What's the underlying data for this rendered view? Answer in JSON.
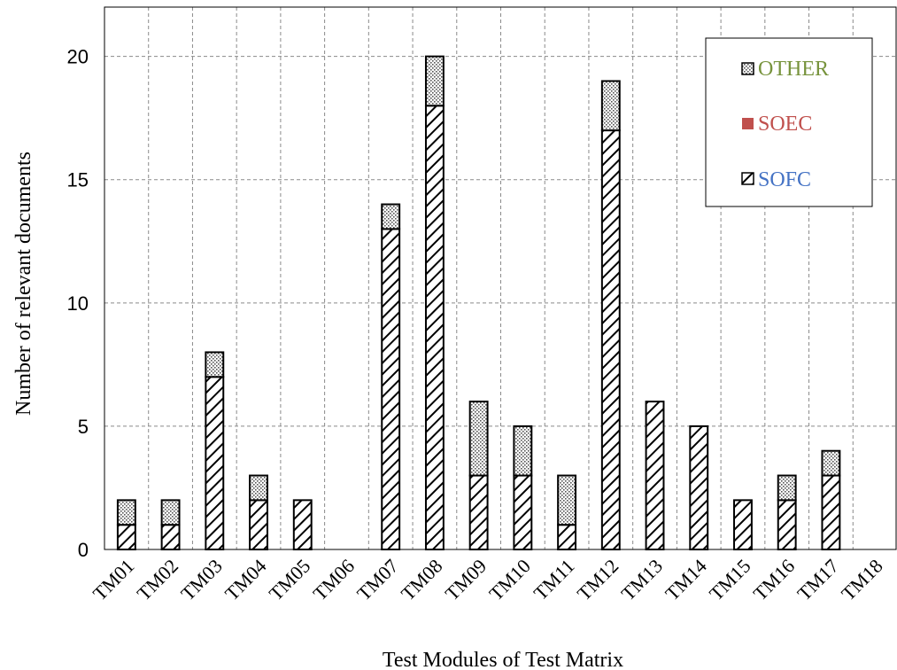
{
  "chart_data": {
    "type": "bar",
    "stacked": true,
    "title": "",
    "xlabel": "Test Modules of Test Matrix",
    "ylabel": "Number of relevant documents",
    "ylim": [
      0,
      22
    ],
    "yticks": [
      "0",
      "5",
      "10",
      "15",
      "20"
    ],
    "grid": true,
    "legend_position": "top-right",
    "categories": [
      "TM01",
      "TM02",
      "TM03",
      "TM04",
      "TM05",
      "TM06",
      "TM07",
      "TM08",
      "TM09",
      "TM10",
      "TM11",
      "TM12",
      "TM13",
      "TM14",
      "TM15",
      "TM16",
      "TM17",
      "TM18"
    ],
    "series": [
      {
        "name": "SOFC",
        "pattern": "diagonal-hatch",
        "color": "#000000",
        "label_color": "#4472C4",
        "values": [
          1,
          1,
          7,
          2,
          2,
          0,
          13,
          18,
          3,
          3,
          1,
          17,
          6,
          5,
          2,
          2,
          3,
          0
        ]
      },
      {
        "name": "SOEC",
        "pattern": "solid",
        "color": "#C0504D",
        "label_color": "#C0504D",
        "values": [
          0,
          0,
          0,
          0,
          0,
          0,
          0,
          0,
          0,
          0,
          0,
          0,
          0,
          0,
          0,
          0,
          0,
          0
        ]
      },
      {
        "name": "OTHER",
        "pattern": "dotted",
        "color": "#888888",
        "label_color": "#77933C",
        "values": [
          1,
          1,
          1,
          1,
          0,
          0,
          1,
          2,
          3,
          2,
          2,
          2,
          0,
          0,
          0,
          1,
          1,
          0
        ]
      }
    ]
  }
}
